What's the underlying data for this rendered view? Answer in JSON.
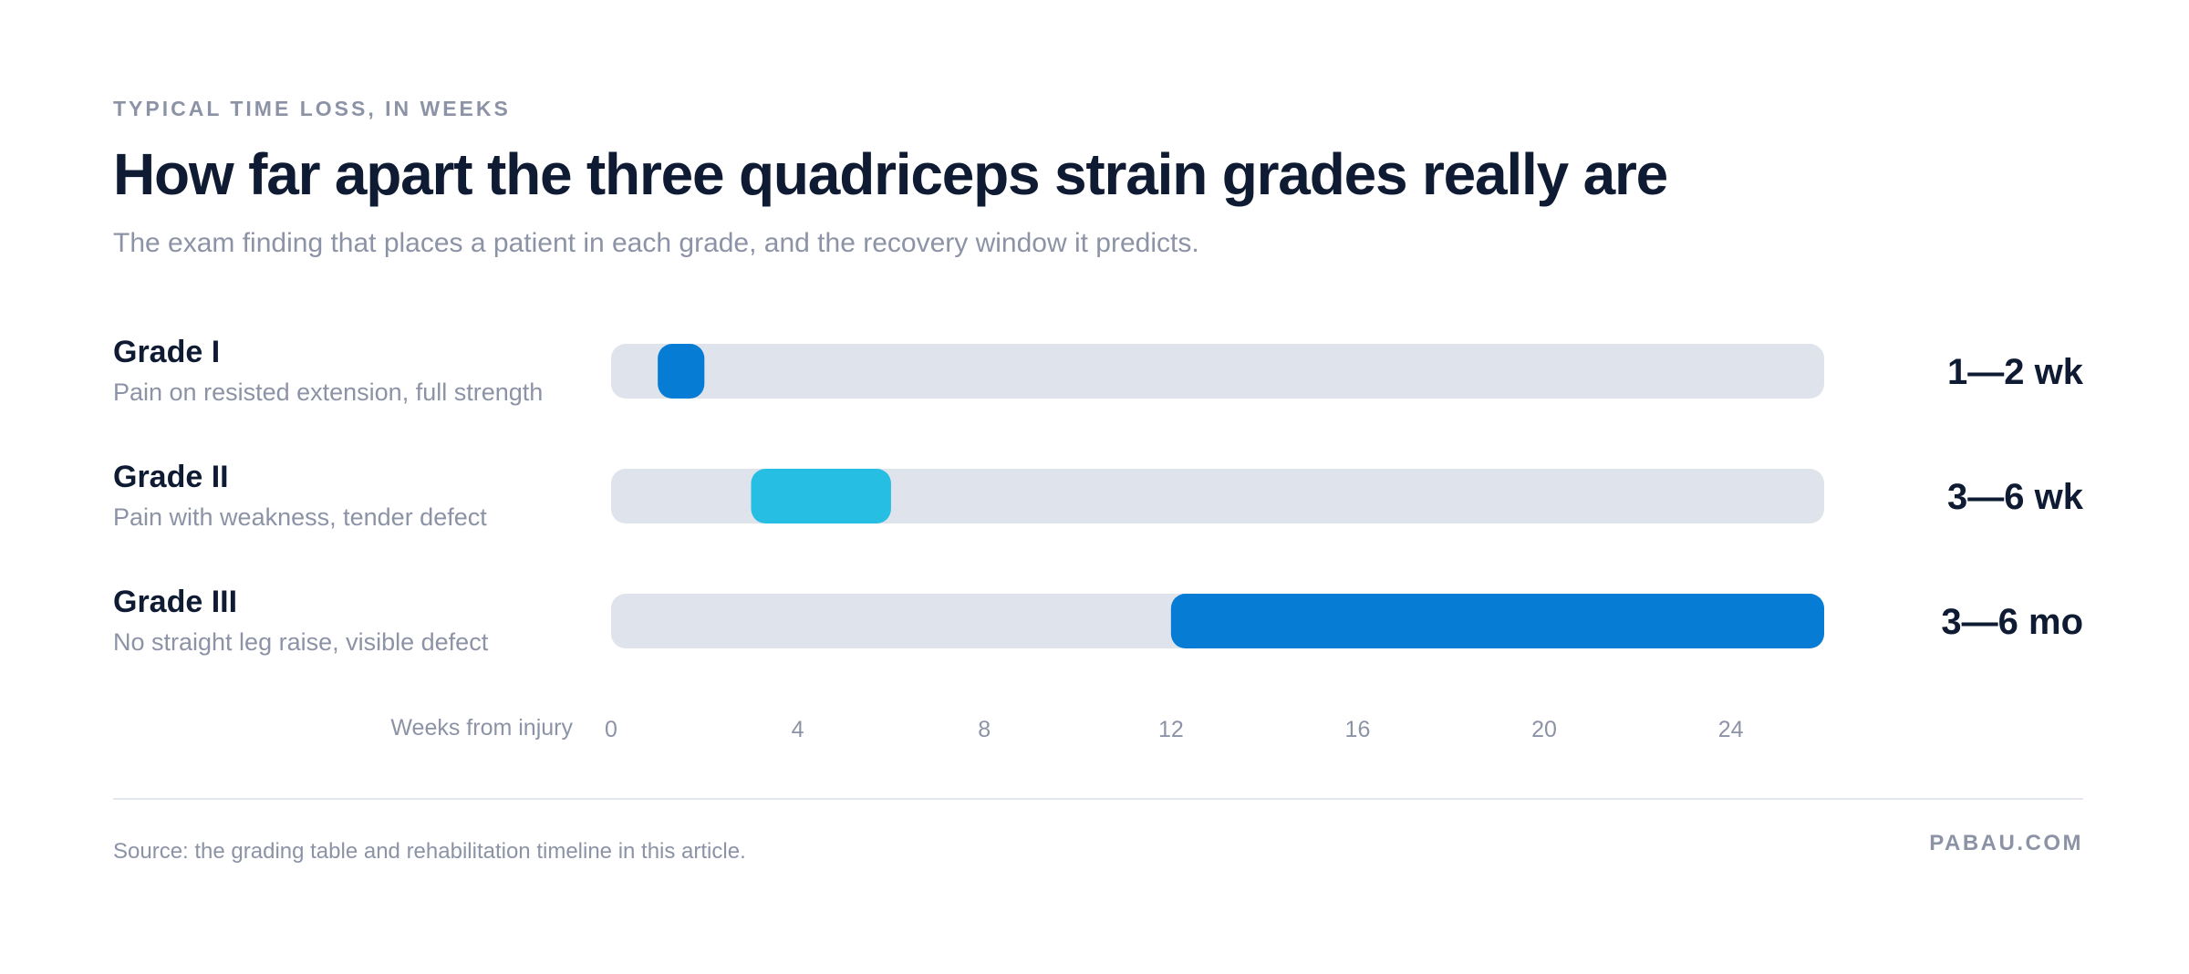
{
  "header": {
    "eyebrow": "TYPICAL TIME LOSS, IN WEEKS",
    "title": "How far apart the three quadriceps strain grades really are",
    "subtitle": "The exam finding that places a patient in each grade, and the recovery window it predicts."
  },
  "footer": {
    "source": "Source: the grading table and rehabilitation timeline in this article.",
    "brand": "PABAU.COM"
  },
  "colors": {
    "track": "#dfe3ec",
    "grade_1": "#077cd4",
    "grade_2": "#26bee2",
    "grade_3": "#077cd4",
    "text_dark": "#0f1a33",
    "text_muted": "#8c93a6"
  },
  "chart_data": {
    "type": "bar",
    "orientation": "horizontal",
    "subtype": "range",
    "title": "How far apart the three quadriceps strain grades really are",
    "xlabel": "Weeks from injury",
    "xlim": [
      0,
      26
    ],
    "xticks": [
      0,
      4,
      8,
      12,
      16,
      20,
      24
    ],
    "grid": false,
    "rows": [
      {
        "name": "Grade I",
        "description": "Pain on resisted extension, full strength",
        "start": 1,
        "end": 2,
        "range_label": "1—2 wk",
        "color": "#077cd4"
      },
      {
        "name": "Grade II",
        "description": "Pain with weakness, tender defect",
        "start": 3,
        "end": 6,
        "range_label": "3—6 wk",
        "color": "#26bee2"
      },
      {
        "name": "Grade III",
        "description": "No straight leg raise, visible defect",
        "start": 12,
        "end": 26,
        "range_label": "3—6 mo",
        "color": "#077cd4"
      }
    ]
  }
}
